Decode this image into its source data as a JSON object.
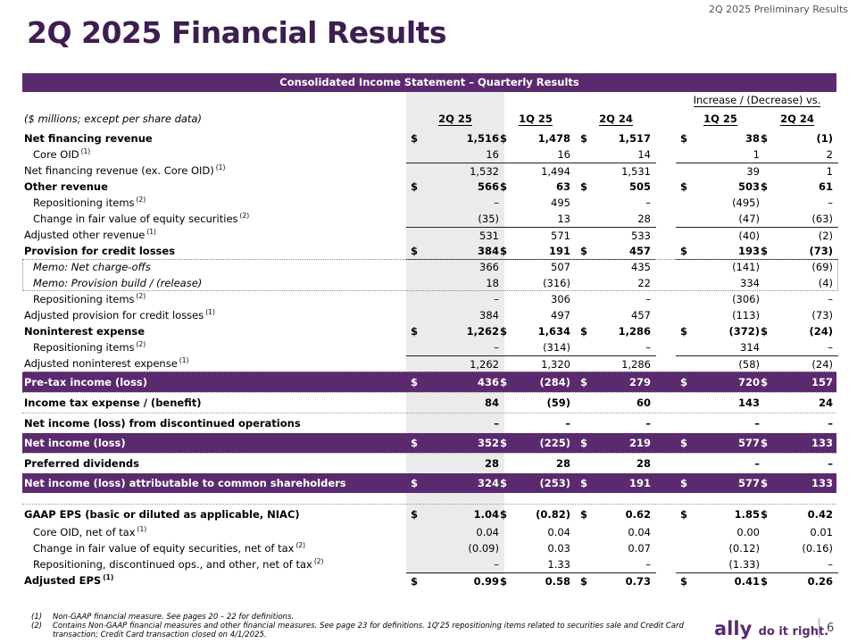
{
  "header": {
    "tag": "2Q 2025 Preliminary Results",
    "title": "2Q 2025 Financial Results"
  },
  "table": {
    "banner": "Consolidated Income Statement – Quarterly Results",
    "increase_header": "Increase / (Decrease) vs.",
    "units_label": "($ millions; except per share data)",
    "columns": [
      "2Q 25",
      "1Q 25",
      "2Q 24",
      "1Q 25",
      "2Q 24"
    ],
    "rows": [
      {
        "label": "Net financing revenue",
        "fn": "",
        "v": [
          "1,516",
          "1,478",
          "1,517",
          "38",
          "(1)"
        ]
      },
      {
        "label": "Core OID",
        "fn": "(1)",
        "v": [
          "16",
          "16",
          "14",
          "1",
          "2"
        ]
      },
      {
        "label": "Net financing revenue (ex. Core OID)",
        "fn": "(1)",
        "v": [
          "1,532",
          "1,494",
          "1,531",
          "39",
          "1"
        ]
      },
      {
        "label": "Other revenue",
        "fn": "",
        "v": [
          "566",
          "63",
          "505",
          "503",
          "61"
        ]
      },
      {
        "label": "Repositioning items",
        "fn": "(2)",
        "v": [
          "–",
          "495",
          "–",
          "(495)",
          "–"
        ]
      },
      {
        "label": "Change in fair value of equity securities",
        "fn": "(2)",
        "v": [
          "(35)",
          "13",
          "28",
          "(47)",
          "(63)"
        ]
      },
      {
        "label": "Adjusted other revenue",
        "fn": "(1)",
        "v": [
          "531",
          "571",
          "533",
          "(40)",
          "(2)"
        ]
      },
      {
        "label": "Provision for credit losses",
        "fn": "",
        "v": [
          "384",
          "191",
          "457",
          "193",
          "(73)"
        ]
      },
      {
        "label": "Memo: Net charge-offs",
        "fn": "",
        "v": [
          "366",
          "507",
          "435",
          "(141)",
          "(69)"
        ]
      },
      {
        "label": "Memo: Provision build / (release)",
        "fn": "",
        "v": [
          "18",
          "(316)",
          "22",
          "334",
          "(4)"
        ]
      },
      {
        "label": "Repositioning items",
        "fn": "(2)",
        "v": [
          "–",
          "306",
          "–",
          "(306)",
          "–"
        ]
      },
      {
        "label": "Adjusted provision for credit losses",
        "fn": "(1)",
        "v": [
          "384",
          "497",
          "457",
          "(113)",
          "(73)"
        ]
      },
      {
        "label": "Noninterest expense",
        "fn": "",
        "v": [
          "1,262",
          "1,634",
          "1,286",
          "(372)",
          "(24)"
        ]
      },
      {
        "label": "Repositioning items",
        "fn": "(2)",
        "v": [
          "–",
          "(314)",
          "–",
          "314",
          "–"
        ]
      },
      {
        "label": "Adjusted noninterest expense",
        "fn": "(1)",
        "v": [
          "1,262",
          "1,320",
          "1,286",
          "(58)",
          "(24)"
        ]
      },
      {
        "label": "Pre-tax income (loss)",
        "fn": "",
        "v": [
          "436",
          "(284)",
          "279",
          "720",
          "157"
        ]
      },
      {
        "label": "Income tax expense / (benefit)",
        "fn": "",
        "v": [
          "84",
          "(59)",
          "60",
          "143",
          "24"
        ]
      },
      {
        "label": "Net income (loss) from discontinued operations",
        "fn": "",
        "v": [
          "–",
          "–",
          "–",
          "–",
          "–"
        ]
      },
      {
        "label": "Net income (loss)",
        "fn": "",
        "v": [
          "352",
          "(225)",
          "219",
          "577",
          "133"
        ]
      },
      {
        "label": "Preferred dividends",
        "fn": "",
        "v": [
          "28",
          "28",
          "28",
          "–",
          "–"
        ]
      },
      {
        "label": "Net income (loss) attributable to common shareholders",
        "fn": "",
        "v": [
          "324",
          "(253)",
          "191",
          "577",
          "133"
        ]
      },
      {
        "label": "GAAP EPS (basic or diluted as applicable, NIAC)",
        "fn": "",
        "v": [
          "1.04",
          "(0.82)",
          "0.62",
          "1.85",
          "0.42"
        ]
      },
      {
        "label": "Core OID, net of tax",
        "fn": "(1)",
        "v": [
          "0.04",
          "0.04",
          "0.04",
          "0.00",
          "0.01"
        ]
      },
      {
        "label": "Change in fair value of equity securities, net of tax",
        "fn": "(2)",
        "v": [
          "(0.09)",
          "0.03",
          "0.07",
          "(0.12)",
          "(0.16)"
        ]
      },
      {
        "label": "Repositioning, discontinued ops., and other, net of tax",
        "fn": "(2)",
        "v": [
          "–",
          "1.33",
          "–",
          "(1.33)",
          "–"
        ]
      },
      {
        "label": "Adjusted EPS",
        "fn": "(1)",
        "v": [
          "0.99",
          "0.58",
          "0.73",
          "0.41",
          "0.26"
        ]
      }
    ],
    "dollar_sign": "$"
  },
  "footnotes": [
    {
      "num": "(1)",
      "text": "Non-GAAP financial measure. See pages 20 – 22 for definitions."
    },
    {
      "num": "(2)",
      "text": "Contains Non-GAAP financial measures and other financial measures. See page 23 for definitions. 1Q'25 repositioning items related to securities sale and Credit Card transaction; Credit Card transaction closed on 4/1/2025."
    }
  ],
  "footer": {
    "brand": "ally",
    "slogan": "do it right.",
    "page": "6"
  },
  "colors": {
    "brand_purple": "#5b2a6e",
    "title_purple": "#3d1e4f"
  }
}
